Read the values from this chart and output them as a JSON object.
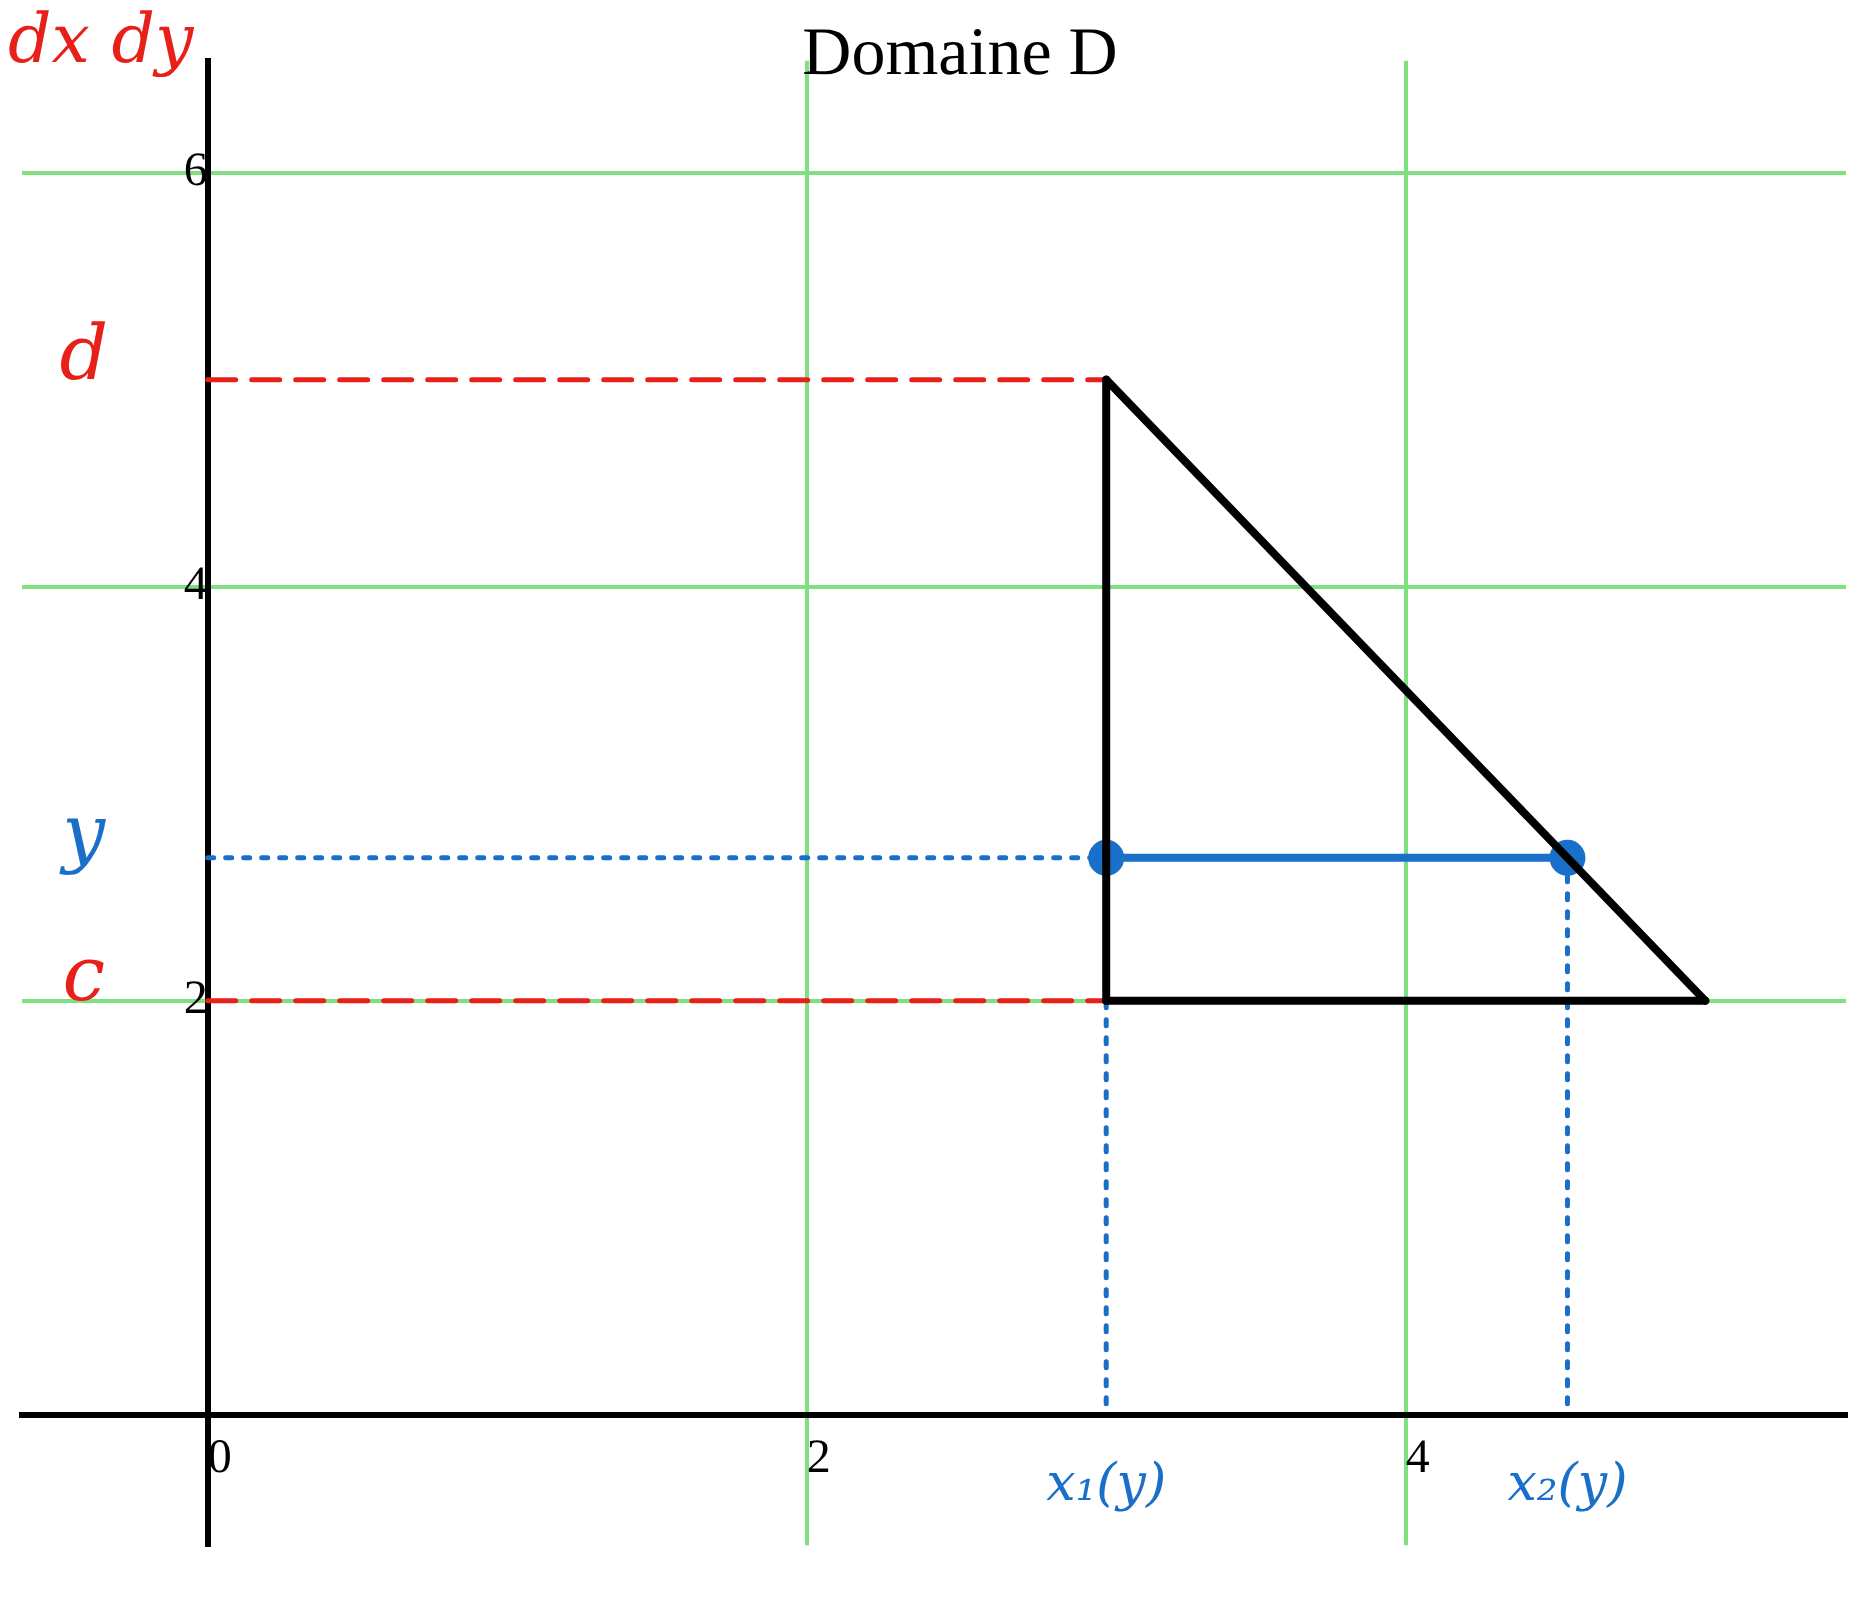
{
  "chart_data": {
    "type": "line",
    "title": "Domaine D",
    "xlim": [
      -0.62,
      5.47
    ],
    "ylim": [
      -0.63,
      6.54
    ],
    "xticks": [
      0,
      2,
      4
    ],
    "yticks": [
      2,
      4,
      6
    ],
    "grid": true,
    "legend": false,
    "marker": "none",
    "line_style": "solid",
    "series": [
      {
        "color": "#000000",
        "x": [
          3,
          3
        ],
        "values": [
          5,
          2
        ]
      },
      {
        "color": "#000000",
        "x": [
          3,
          5
        ],
        "values": [
          2,
          2
        ]
      },
      {
        "color": "#000000",
        "x": [
          3,
          5
        ],
        "values": [
          5,
          2
        ]
      },
      {
        "color": "#1a6fc9",
        "x": [
          3,
          4.54
        ],
        "values": [
          2.69,
          2.69
        ],
        "marker": "circle"
      },
      {
        "color": "#e8201a",
        "x": [
          0,
          3
        ],
        "values": [
          5,
          5
        ],
        "line_style": "dashed"
      },
      {
        "color": "#e8201a",
        "x": [
          0,
          3
        ],
        "values": [
          2,
          2
        ],
        "line_style": "dashed"
      },
      {
        "color": "#1a6fc9",
        "x": [
          0,
          3
        ],
        "values": [
          2.69,
          2.69
        ],
        "line_style": "dotted"
      },
      {
        "color": "#1a6fc9",
        "x": [
          3,
          3
        ],
        "values": [
          2.69,
          0
        ],
        "line_style": "dotted"
      },
      {
        "color": "#1a6fc9",
        "x": [
          4.54,
          4.54
        ],
        "values": [
          2.69,
          0
        ],
        "line_style": "dotted"
      }
    ],
    "annotations": [
      "dx dy",
      {
        "text": "d",
        "x": 0,
        "y": 5
      },
      {
        "text": "y",
        "x": 0,
        "y": 2.69
      },
      {
        "text": "c",
        "x": 0,
        "y": 2
      },
      {
        "text": "x₁(y)",
        "x": 3,
        "y": 0
      },
      {
        "text": "x₂(y)",
        "x": 4.54,
        "y": 0
      }
    ]
  }
}
